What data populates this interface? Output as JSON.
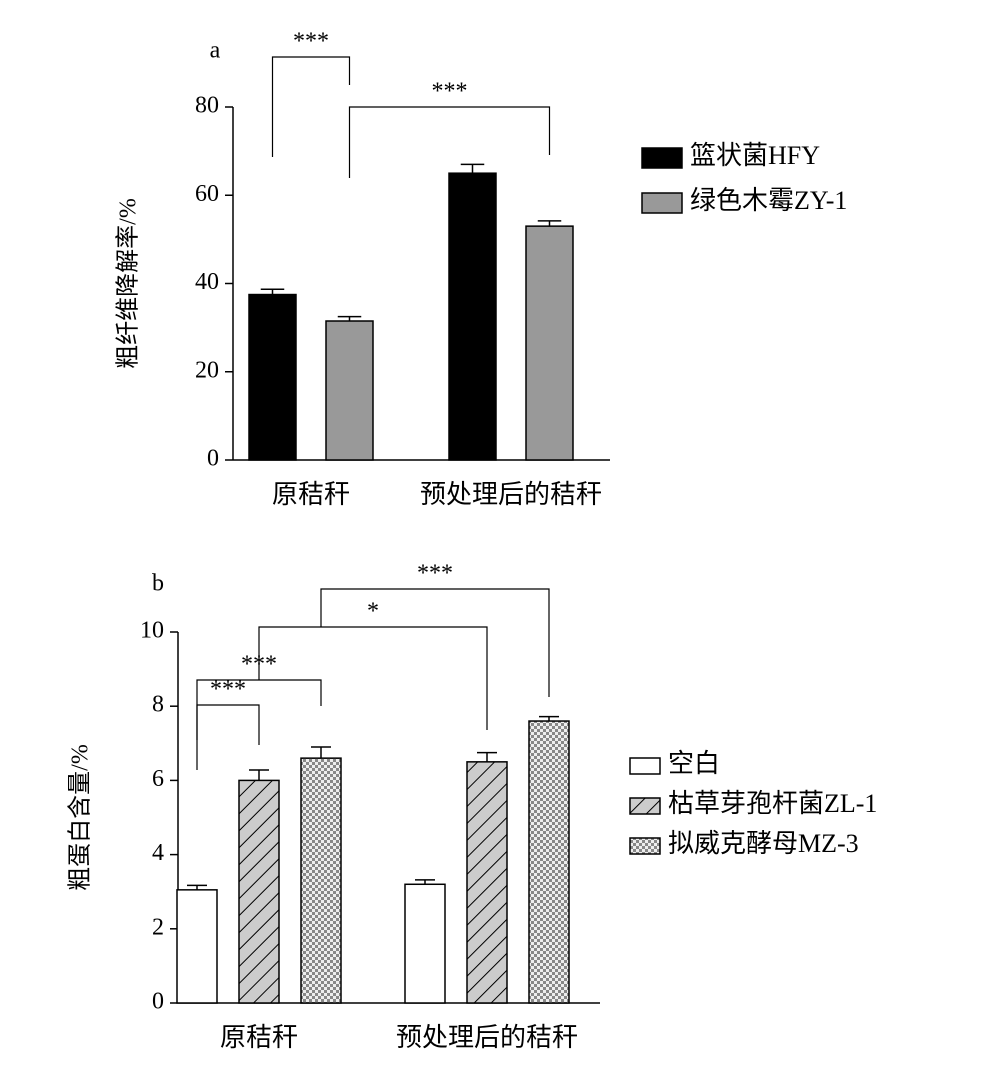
{
  "chart_data": [
    {
      "type": "bar",
      "panel": "a",
      "y_label": "粗纤维降解率/%",
      "categories": [
        "原秸秆",
        "预处理后的秸秆"
      ],
      "series": [
        {
          "name": "篮状菌HFY",
          "color": "#000000",
          "values": [
            37.5,
            65
          ],
          "errors": [
            1.2,
            2
          ]
        },
        {
          "name": "绿色木霉ZY-1",
          "color": "#999999",
          "values": [
            31.5,
            53
          ],
          "errors": [
            1,
            1.2
          ]
        }
      ],
      "ylim": [
        0,
        80
      ],
      "yticks": [
        0,
        20,
        40,
        60,
        80
      ],
      "annotations": [
        "***",
        "***"
      ]
    },
    {
      "type": "bar",
      "panel": "b",
      "y_label": "粗蛋白含量/%",
      "categories": [
        "原秸秆",
        "预处理后的秸秆"
      ],
      "series": [
        {
          "name": "空白",
          "color": "#ffffff",
          "values": [
            3.05,
            3.2
          ],
          "errors": [
            0.12,
            0.12
          ]
        },
        {
          "name": "枯草芽孢杆菌ZL-1",
          "color": "#cccccc",
          "pattern": "hatch",
          "values": [
            6.0,
            6.5
          ],
          "errors": [
            0.28,
            0.25
          ]
        },
        {
          "name": "拟威克酵母MZ-3",
          "color": "#cccccc",
          "pattern": "checker",
          "values": [
            6.6,
            7.6
          ],
          "errors": [
            0.3,
            0.12
          ]
        }
      ],
      "ylim": [
        0,
        10
      ],
      "yticks": [
        0,
        2,
        4,
        6,
        8,
        10
      ],
      "annotations": [
        "***",
        "***",
        "*",
        "***"
      ]
    }
  ]
}
